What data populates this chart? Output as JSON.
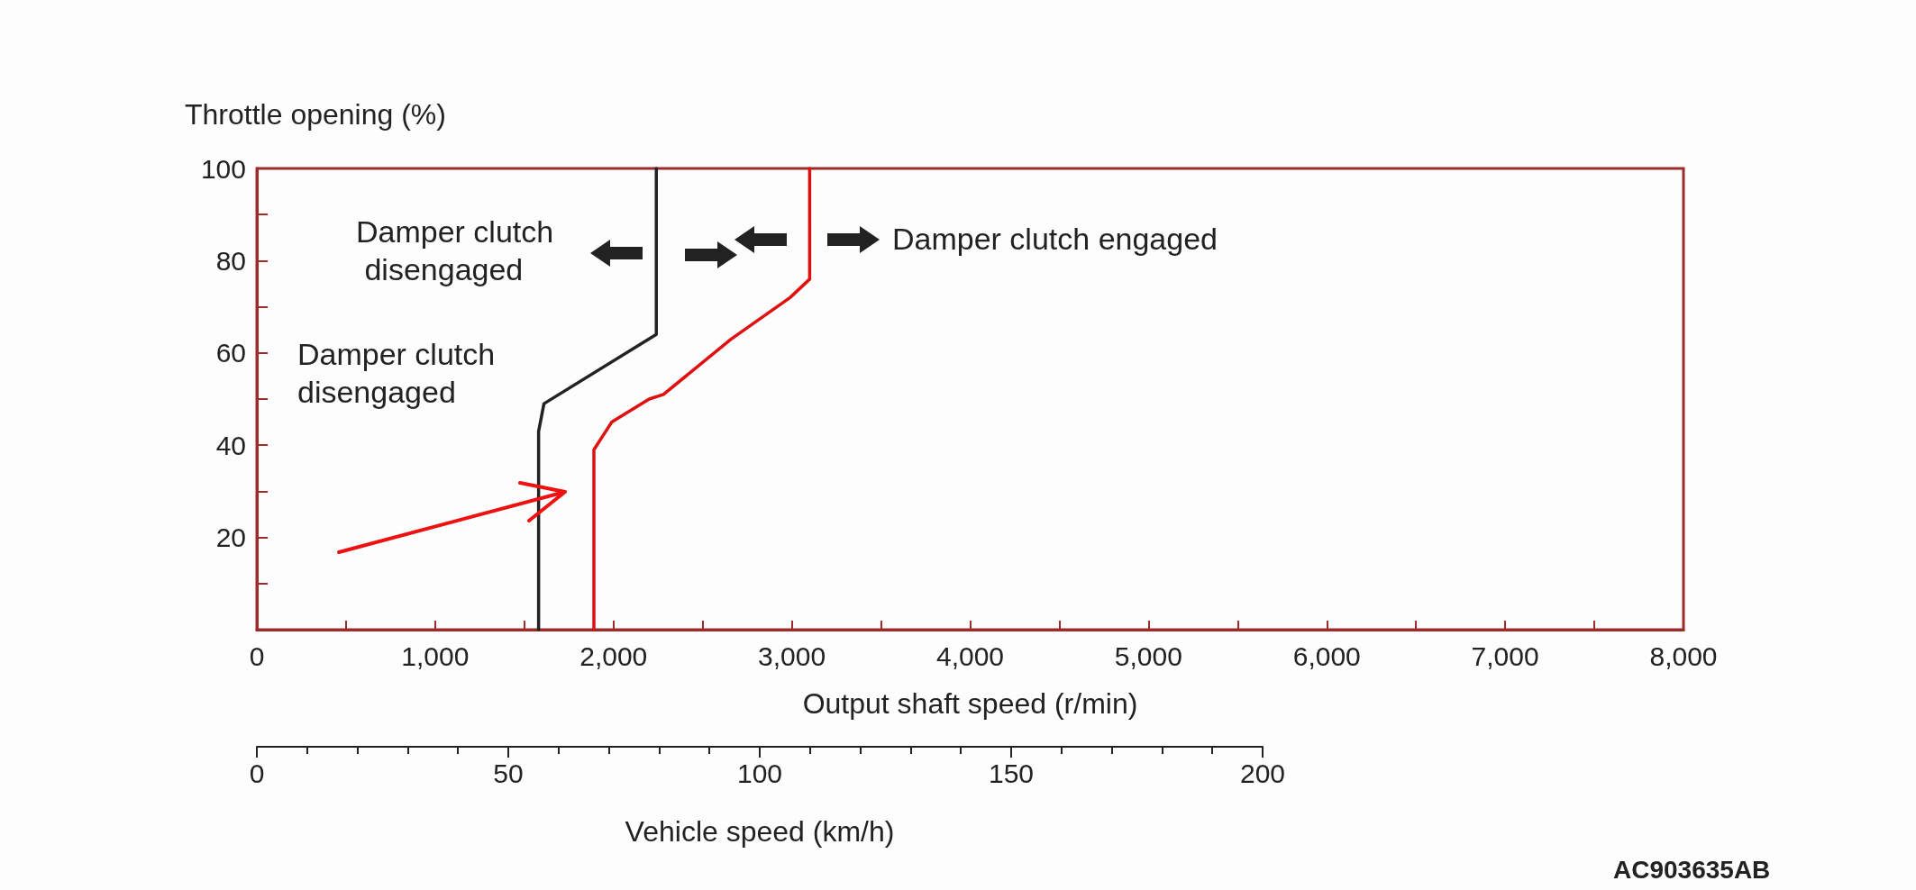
{
  "chart_data": {
    "type": "line",
    "ylabel": "Throttle opening (%)",
    "xlabel": "Output shaft speed (r/min)",
    "x2label": "Vehicle speed (km/h)",
    "xlim": [
      0,
      8000
    ],
    "xticks": [
      0,
      {
        "value": 500,
        "label": null
      },
      {
        "value": 1000,
        "label": "1,000"
      },
      {
        "value": 1500,
        "label": null
      },
      {
        "value": 2000,
        "label": "2,000"
      },
      {
        "value": 2500,
        "label": null
      },
      {
        "value": 3000,
        "label": "3,000"
      },
      {
        "value": 3500,
        "label": null
      },
      {
        "value": 4000,
        "label": "4,000"
      },
      {
        "value": 4500,
        "label": null
      },
      {
        "value": 5000,
        "label": "5,000"
      },
      {
        "value": 5500,
        "label": null
      },
      {
        "value": 6000,
        "label": "6,000"
      },
      {
        "value": 6500,
        "label": null
      },
      {
        "value": 7000,
        "label": "7,000"
      },
      {
        "value": 7500,
        "label": null
      },
      {
        "value": 8000,
        "label": "8,000"
      }
    ],
    "ylim": [
      0,
      100
    ],
    "yticks": [
      {
        "value": 0,
        "label": null
      },
      {
        "value": 10,
        "label": null
      },
      20,
      {
        "value": 30,
        "label": null
      },
      40,
      {
        "value": 50,
        "label": null
      },
      60,
      {
        "value": 70,
        "label": null
      },
      80,
      {
        "value": 90,
        "label": null
      },
      100
    ],
    "x2lim": [
      0,
      200
    ],
    "x2ticks": [
      0,
      50,
      100,
      150,
      200
    ],
    "marker": "none",
    "line_style": "solid",
    "series": [
      {
        "color": "#222222",
        "x": [
          1580,
          1580,
          1610,
          2240,
          2240
        ],
        "values": [
          0,
          43,
          49,
          64,
          100
        ]
      },
      {
        "color": "#e01010",
        "x": [
          1890,
          1890,
          1990,
          2200,
          2280,
          2660,
          2990,
          3100,
          3100
        ],
        "values": [
          0,
          39,
          45,
          50,
          51,
          63,
          72,
          76,
          100
        ]
      }
    ],
    "annotations": [
      "Damper clutch disengaged",
      "Damper clutch disengaged",
      "Damper clutch engaged",
      "AC903635AB"
    ]
  }
}
